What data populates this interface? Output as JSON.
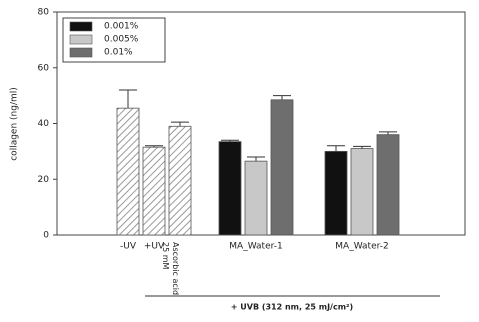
{
  "chart_data": {
    "type": "bar",
    "ylabel": "collagen (ng/ml)",
    "xlabel": "+ UVB (312 nm, 25 mJ/cm²)",
    "ylim": [
      0,
      80
    ],
    "yticks": [
      0,
      20,
      40,
      60,
      80
    ],
    "controls": {
      "categories": [
        "-UV",
        "+UV",
        "Ascorbic acid 25 mM"
      ],
      "values": [
        45.5,
        31.5,
        39
      ],
      "errors": [
        6.5,
        0.5,
        1.5
      ]
    },
    "categories": [
      "MA_Water-1",
      "MA_Water-2"
    ],
    "series": [
      {
        "name": "0.001%",
        "color": "#111111",
        "values": [
          33.5,
          30
        ],
        "errors": [
          0.5,
          2
        ]
      },
      {
        "name": "0.005%",
        "color": "#c8c8c8",
        "values": [
          26.5,
          31
        ],
        "errors": [
          1.5,
          0.8
        ]
      },
      {
        "name": "0.01%",
        "color": "#6e6e6e",
        "values": [
          48.5,
          36
        ],
        "errors": [
          1.5,
          1
        ]
      }
    ],
    "legend": "upper left"
  }
}
